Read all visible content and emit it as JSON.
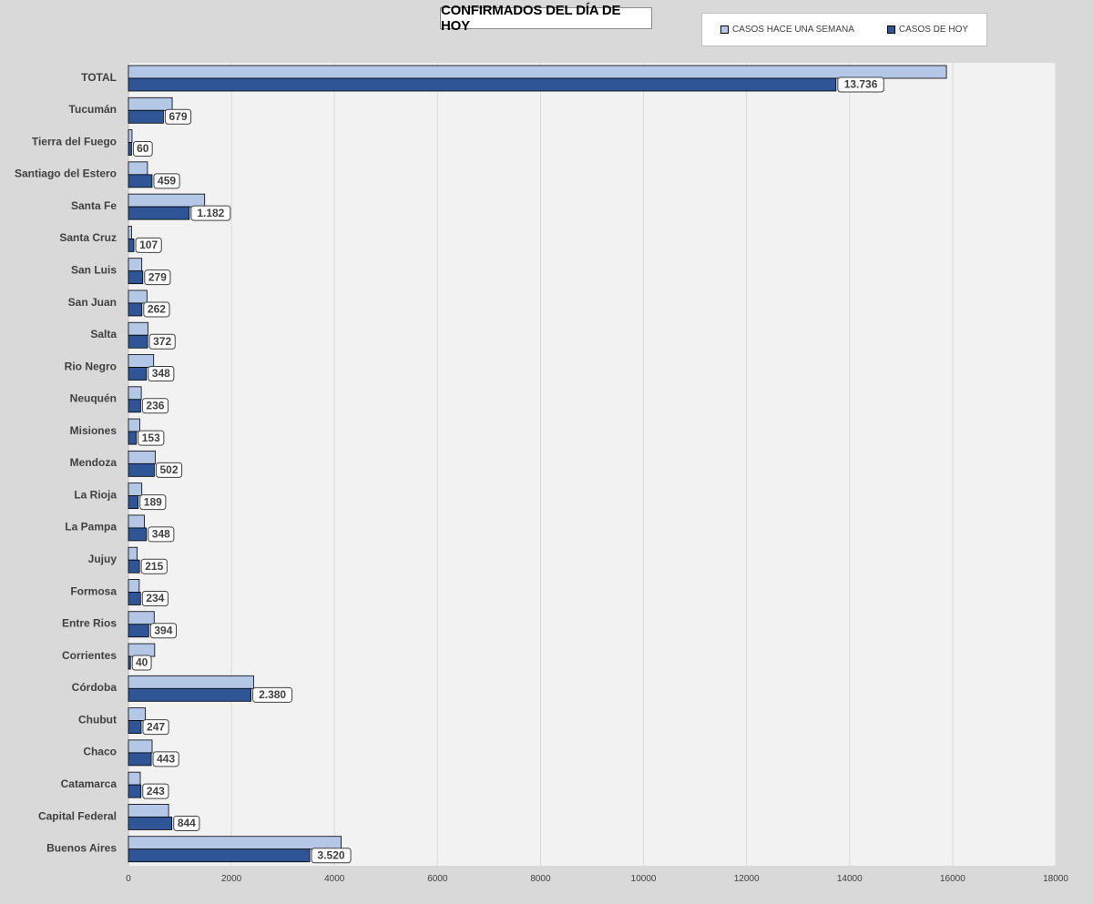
{
  "chart_data": {
    "type": "bar",
    "orientation": "horizontal",
    "title": "CONFIRMADOS DEL DÍA DE HOY",
    "legend_position": "top-right",
    "grid": true,
    "xlim": [
      0,
      18000
    ],
    "x_ticks": [
      "0",
      "2000",
      "4000",
      "6000",
      "8000",
      "10000",
      "12000",
      "14000",
      "16000",
      "18000"
    ],
    "categories": [
      "TOTAL",
      "Tucumán",
      "Tierra del Fuego",
      "Santiago del Estero",
      "Santa Fe",
      "Santa Cruz",
      "San Luis",
      "San Juan",
      "Salta",
      "Rio Negro",
      "Neuquén",
      "Misiones",
      "Mendoza",
      "La Rioja",
      "La Pampa",
      "Jujuy",
      "Formosa",
      "Entre Rios",
      "Corrientes",
      "Córdoba",
      "Chubut",
      "Chaco",
      "Catamarca",
      "Capital Federal",
      "Buenos Aires"
    ],
    "series": [
      {
        "name": "CASOS HACE UNA SEMANA",
        "color": "#b4c7e7",
        "values": [
          15880,
          850,
          70,
          370,
          1480,
          60,
          260,
          360,
          380,
          490,
          250,
          220,
          520,
          260,
          310,
          170,
          210,
          500,
          510,
          2430,
          330,
          460,
          230,
          780,
          4130
        ]
      },
      {
        "name": "CASOS DE HOY",
        "color": "#2f5597",
        "values": [
          13736,
          679,
          60,
          459,
          1182,
          107,
          279,
          262,
          372,
          348,
          236,
          153,
          502,
          189,
          348,
          215,
          234,
          394,
          40,
          2380,
          247,
          443,
          243,
          844,
          3520
        ],
        "labels": [
          "13.736",
          "679",
          "60",
          "459",
          "1.182",
          "107",
          "279",
          "262",
          "372",
          "348",
          "236",
          "153",
          "502",
          "189",
          "348",
          "215",
          "234",
          "394",
          "40",
          "2.380",
          "247",
          "443",
          "243",
          "844",
          "3.520"
        ]
      }
    ]
  }
}
